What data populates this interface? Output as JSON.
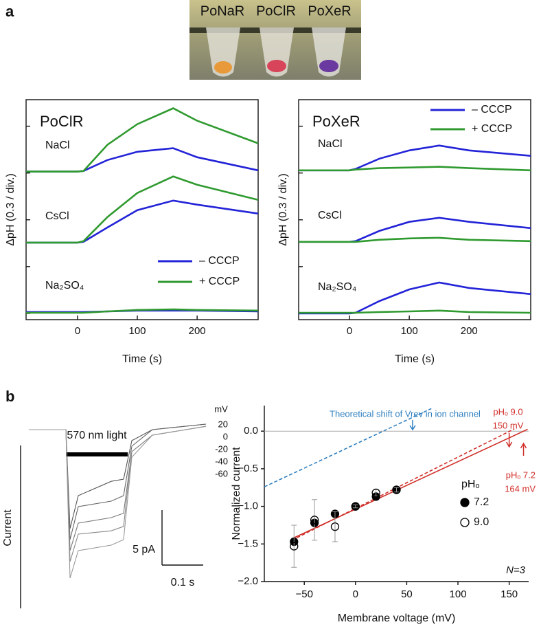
{
  "panel_labels": [
    "a",
    "b"
  ],
  "photo_labels": [
    "PoNaR",
    "PoClR",
    "PoXeR"
  ],
  "chart_data": [
    {
      "type": "line",
      "title": "PoClR",
      "xlabel": "Time (s)",
      "ylabel": "ΔpH (0.3 / div.)",
      "x": [
        -86,
        0,
        10,
        50,
        100,
        160,
        200,
        302
      ],
      "xlim": [
        -86,
        302
      ],
      "xticks": [
        0,
        100,
        200
      ],
      "ylim": [
        -0.04,
        1.37
      ],
      "yticks": [
        0,
        0.3,
        0.6,
        0.9,
        1.2
      ],
      "legend": "lower right",
      "trace_labels": [
        "NaCl",
        "CsCl",
        "Na₂SO₄"
      ],
      "series": [
        {
          "name": "– CCCP",
          "color": "#2323d8",
          "traces": [
            [
              0.909,
              0.909,
              0.913,
              0.983,
              1.036,
              1.059,
              1.001,
              0.917
            ],
            [
              0.454,
              0.454,
              0.459,
              0.551,
              0.662,
              0.723,
              0.697,
              0.64
            ],
            [
              0.009,
              0.009,
              0.009,
              0.013,
              0.018,
              0.018,
              0.018,
              0.013
            ]
          ]
        },
        {
          "name": "+ CCCP",
          "color": "#2f9a2f",
          "traces": [
            [
              0.909,
              0.909,
              0.913,
              1.081,
              1.213,
              1.315,
              1.235,
              1.09
            ],
            [
              0.454,
              0.454,
              0.463,
              0.618,
              0.772,
              0.878,
              0.825,
              0.728
            ],
            [
              0.004,
              0.004,
              0.004,
              0.013,
              0.022,
              0.026,
              0.022,
              0.018
            ]
          ]
        }
      ]
    },
    {
      "type": "line",
      "title": "PoXeR",
      "xlabel": "Time (s)",
      "ylabel": "ΔpH (0.3 / div.)",
      "x": [
        -85,
        0,
        10,
        50,
        100,
        150,
        200,
        303
      ],
      "xlim": [
        -85,
        303
      ],
      "xticks": [
        0,
        100,
        200
      ],
      "ylim": [
        -0.04,
        1.37
      ],
      "yticks": [
        0,
        0.3,
        0.6,
        0.9,
        1.2
      ],
      "legend": "upper right",
      "trace_labels": [
        "NaCl",
        "CsCl",
        "Na₂SO₄"
      ],
      "series": [
        {
          "name": "– CCCP",
          "color": "#2323d8",
          "traces": [
            [
              0.917,
              0.917,
              0.926,
              0.992,
              1.045,
              1.076,
              1.045,
              1.01
            ],
            [
              0.459,
              0.459,
              0.463,
              0.529,
              0.587,
              0.613,
              0.587,
              0.547
            ],
            [
              0,
              0,
              0.004,
              0.079,
              0.154,
              0.198,
              0.163,
              0.124
            ]
          ]
        },
        {
          "name": "+ CCCP",
          "color": "#2f9a2f",
          "traces": [
            [
              0.917,
              0.917,
              0.922,
              0.931,
              0.935,
              0.94,
              0.931,
              0.917
            ],
            [
              0.459,
              0.459,
              0.459,
              0.472,
              0.481,
              0.485,
              0.472,
              0.463
            ],
            [
              0.004,
              0.004,
              0.004,
              0.009,
              0.013,
              0.018,
              0.009,
              0.004
            ]
          ]
        }
      ]
    },
    {
      "type": "trace",
      "ylabel": "Current",
      "voltage_title": "mV",
      "x": [
        0,
        0.09,
        0.1,
        0.12,
        0.2,
        0.23,
        0.25,
        0.3,
        0.43
      ],
      "light": {
        "label": "570 nm light",
        "start": 0.09,
        "end": 0.24
      },
      "series": [
        {
          "name": "20",
          "values": [
            0,
            0,
            -9,
            -6,
            -4.7,
            -4.5,
            -1,
            0,
            0.5
          ]
        },
        {
          "name": "0",
          "values": [
            0,
            0,
            -10,
            -7,
            -6.5,
            -6,
            -1.5,
            0,
            0.5
          ]
        },
        {
          "name": "-20",
          "values": [
            0,
            0,
            -11,
            -8.5,
            -8,
            -7.6,
            -2,
            -0.5,
            0.3
          ]
        },
        {
          "name": "-40",
          "values": [
            0,
            0,
            -12,
            -9.5,
            -9.2,
            -8.8,
            -2,
            -0.5,
            0.3
          ]
        },
        {
          "name": "-60",
          "values": [
            0,
            0,
            -13.5,
            -11,
            -10.5,
            -10,
            -2.5,
            -0.5,
            0.3
          ]
        }
      ],
      "scalebars": [
        {
          "axis": "y",
          "value": 5,
          "label": "5 pA"
        },
        {
          "axis": "x",
          "value": 0.1,
          "label": "0.1 s"
        }
      ]
    },
    {
      "type": "scatter",
      "xlabel": "Membrane voltage (mV)",
      "ylabel": "Normalized current",
      "xlim": [
        -89,
        169
      ],
      "xticks": [
        {
          "value": -50,
          "label": "−50"
        },
        0,
        50,
        100,
        150
      ],
      "ylim": [
        -2.0,
        0.34
      ],
      "yticks": [
        {
          "value": 0,
          "label": "0.0"
        },
        {
          "value": -0.5,
          "label": "−0.5"
        },
        {
          "value": -1.0,
          "label": "−1.0"
        },
        {
          "value": -1.5,
          "label": "−1.5"
        },
        {
          "value": -2.0,
          "label": "−2.0"
        }
      ],
      "legend_title": "pHₒ",
      "note": "N=3",
      "x": [
        -60,
        -40,
        -20,
        0,
        20,
        40
      ],
      "series": [
        {
          "name": "7.2",
          "color": "#000000",
          "marker": "filled",
          "values": [
            -1.47,
            -1.22,
            -1.1,
            -1.0,
            -0.87,
            -0.78
          ],
          "errors": [
            0.04,
            0.04,
            0.04,
            0.02,
            0.04,
            0.03
          ]
        },
        {
          "name": "9.0",
          "color": "#000000",
          "marker": "open",
          "values": [
            -1.53,
            -1.18,
            -1.27,
            -1.0,
            -0.82,
            -0.78
          ],
          "errors": [
            0.28,
            0.27,
            0.2,
            0.02,
            0.04,
            0.03
          ]
        }
      ],
      "lines": [
        {
          "x": [
            -89,
            74
          ],
          "values": [
            -0.74,
            0.3
          ],
          "color": "#2e7fc0",
          "style": "dashed"
        },
        {
          "x": [
            -62,
            168
          ],
          "values": [
            -1.43,
            0.025
          ],
          "color": "#d0302a",
          "style": "solid"
        },
        {
          "x": [
            -62,
            155
          ],
          "values": [
            -1.45,
            0.03
          ],
          "color": "#d0302a",
          "style": "dashed"
        }
      ],
      "annotations": [
        {
          "label": "Theoretical shift of Vrev in ion channel",
          "color": "#2e7fc0"
        },
        {
          "label": "pHₒ 9.0",
          "sublabel": "150 mV",
          "value": 150,
          "color": "#d0302a"
        },
        {
          "label": "pHₒ 7.2",
          "sublabel": "164 mV",
          "value": 164,
          "color": "#d0302a"
        }
      ]
    }
  ]
}
